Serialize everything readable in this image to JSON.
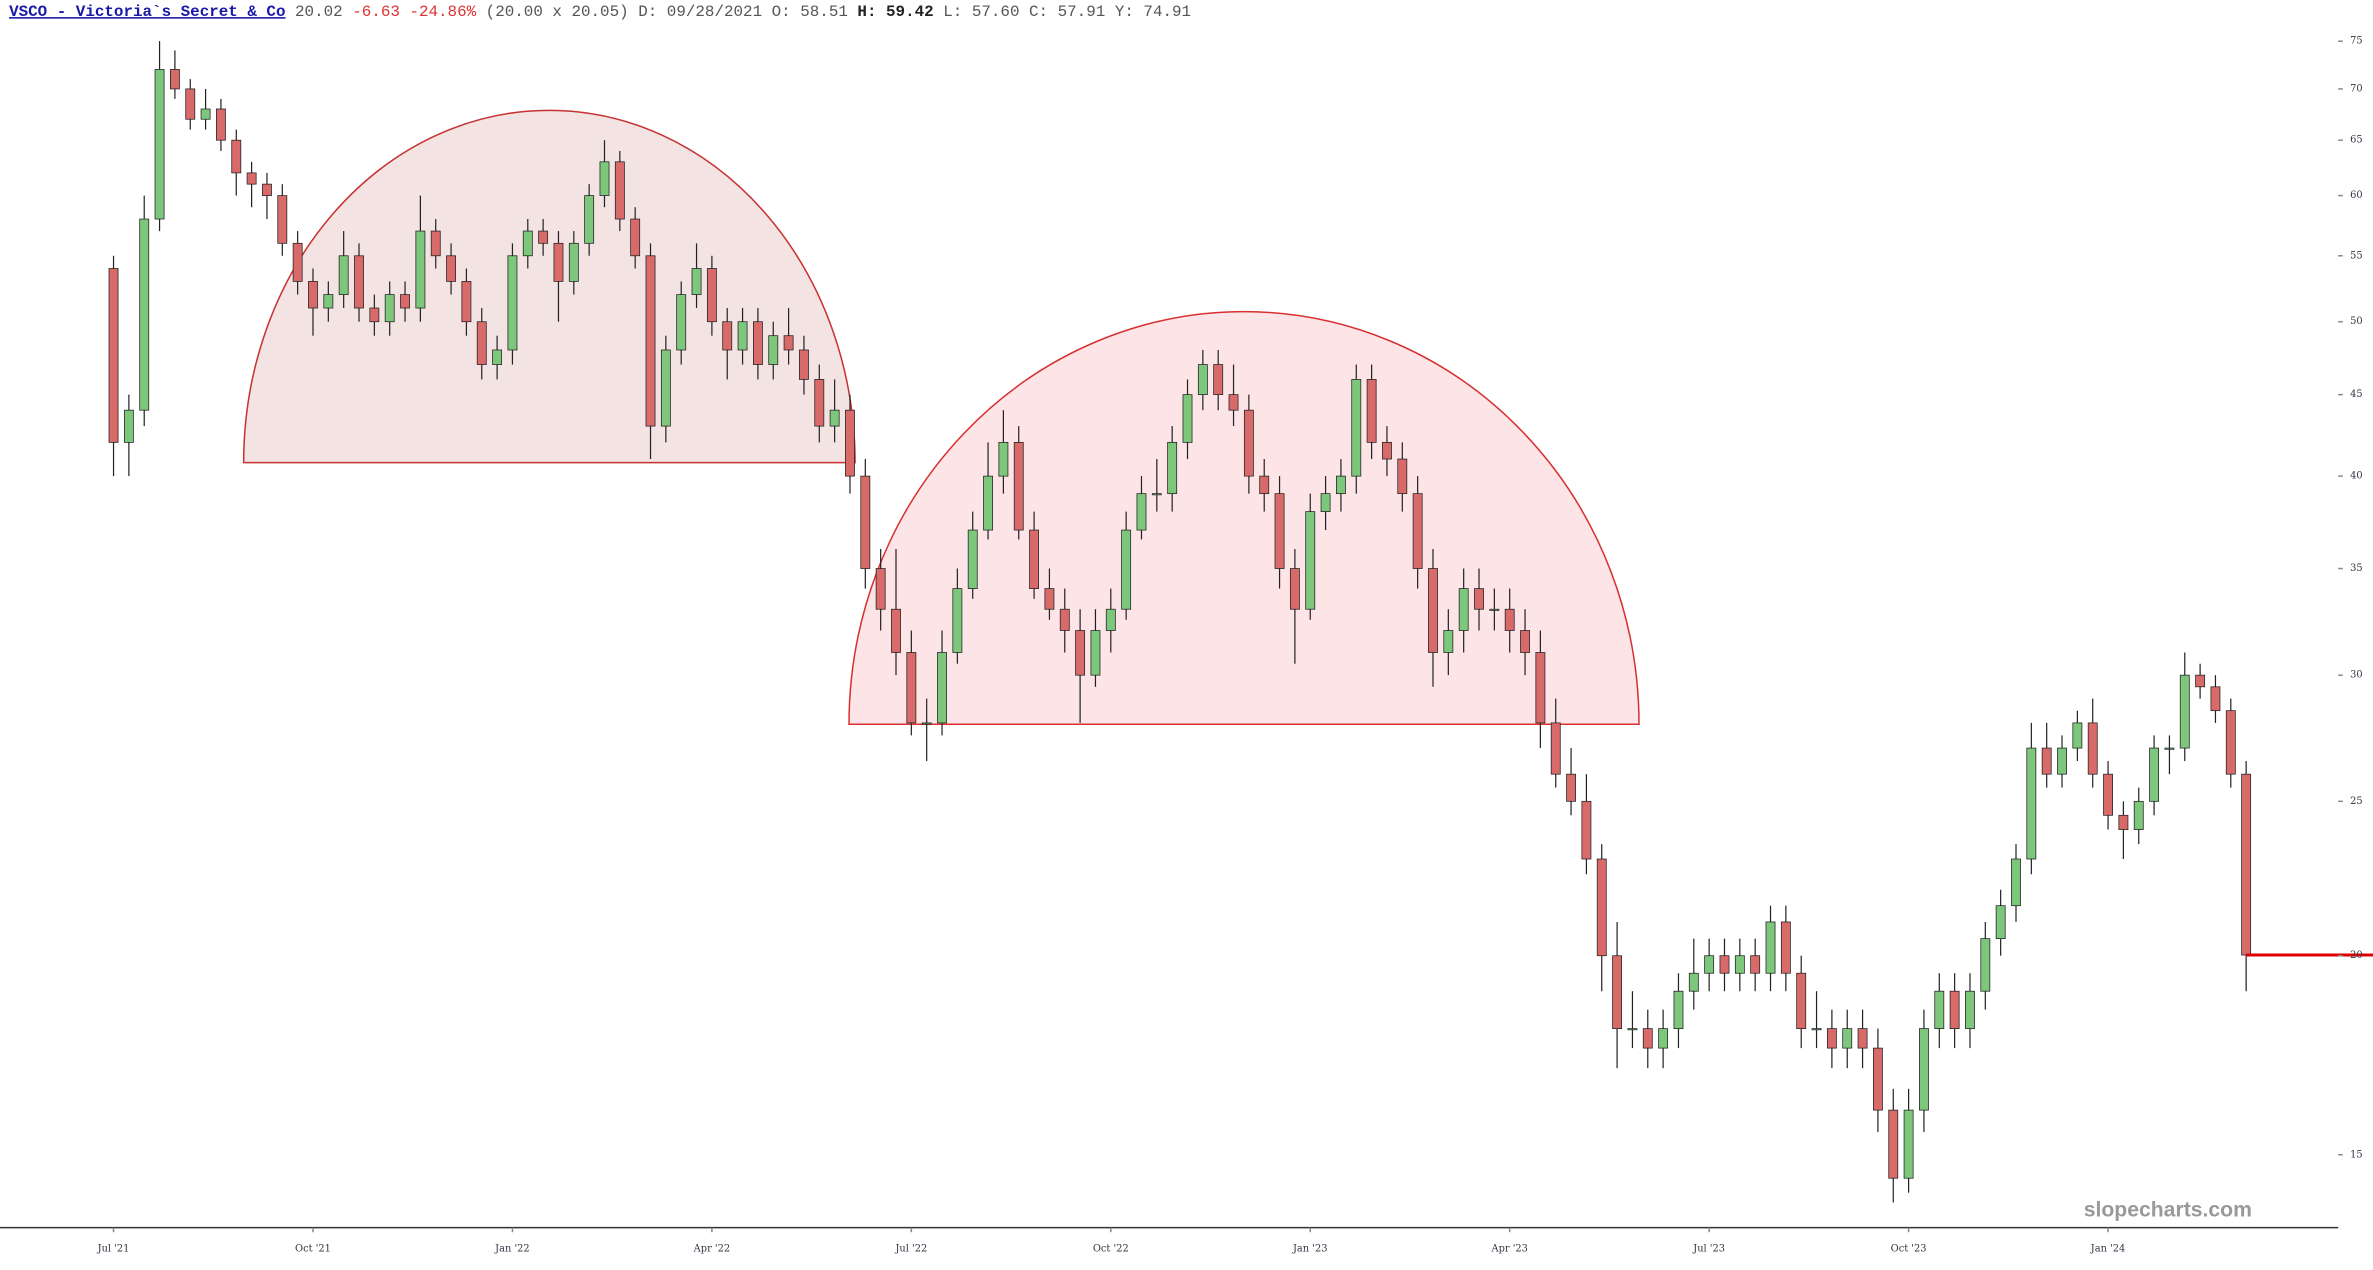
{
  "header": {
    "symbol": "VSCO - Victoria`s Secret & Co",
    "last": "20.02",
    "change": "-6.63",
    "change_pct": "-24.86%",
    "bid_ask": "(20.00 x 20.05)",
    "date": "D: 09/28/2021",
    "open": "O: 58.51",
    "high": "H: 59.42",
    "low": "L: 57.60",
    "close": "C: 57.91",
    "year": "Y: 74.91"
  },
  "chart_data": {
    "type": "candlestick",
    "log_scale": true,
    "watermark": "slopecharts.com",
    "up_color": "#7cc77c",
    "down_color": "#d96a6a",
    "last_line_color": "#dd0000",
    "xlim": [
      -7.4,
      145
    ],
    "ylim": [
      13.5,
      79.6
    ],
    "yticks": [
      15,
      20,
      25,
      30,
      35,
      40,
      45,
      50,
      55,
      60,
      65,
      70,
      75
    ],
    "xticks": [
      {
        "value": 0,
        "label": "Jul '21"
      },
      {
        "value": 13,
        "label": "Oct '21"
      },
      {
        "value": 26,
        "label": "Jan '22"
      },
      {
        "value": 39,
        "label": "Apr '22"
      },
      {
        "value": 52,
        "label": "Jul '22"
      },
      {
        "value": 65,
        "label": "Oct '22"
      },
      {
        "value": 78,
        "label": "Jan '23"
      },
      {
        "value": 91,
        "label": "Apr '23"
      },
      {
        "value": 104,
        "label": "Jul '23"
      },
      {
        "value": 117,
        "label": "Oct '23"
      },
      {
        "value": 130,
        "label": "Jan '24"
      }
    ],
    "x": [
      0,
      1,
      2,
      3,
      4,
      5,
      6,
      7,
      8,
      9,
      10,
      11,
      12,
      13,
      14,
      15,
      16,
      17,
      18,
      19,
      20,
      21,
      22,
      23,
      24,
      25,
      26,
      27,
      28,
      29,
      30,
      31,
      32,
      33,
      34,
      35,
      36,
      37,
      38,
      39,
      40,
      41,
      42,
      43,
      44,
      45,
      46,
      47,
      48,
      49,
      50,
      51,
      52,
      53,
      54,
      55,
      56,
      57,
      58,
      59,
      60,
      61,
      62,
      63,
      64,
      65,
      66,
      67,
      68,
      69,
      70,
      71,
      72,
      73,
      74,
      75,
      76,
      77,
      78,
      79,
      80,
      81,
      82,
      83,
      84,
      85,
      86,
      87,
      88,
      89,
      90,
      91,
      92,
      93,
      94,
      95,
      96,
      97,
      98,
      99,
      100,
      101,
      102,
      103,
      104,
      105,
      106,
      107,
      108,
      109,
      110,
      111,
      112,
      113,
      114,
      115,
      116,
      117,
      118,
      119,
      120,
      121,
      122,
      123,
      124,
      125,
      126,
      127,
      128,
      129,
      130,
      131,
      132,
      133,
      134,
      135,
      136,
      137,
      138,
      139
    ],
    "open": [
      54,
      42,
      44,
      58,
      72,
      70,
      67,
      68,
      65,
      62,
      61,
      60,
      56,
      53,
      51,
      52,
      55,
      51,
      50,
      52,
      51,
      57,
      55,
      53,
      50,
      47,
      48,
      55,
      57,
      56,
      53,
      56,
      60,
      63,
      58,
      55,
      43,
      48,
      52,
      54,
      50,
      48,
      50,
      47,
      49,
      48,
      46,
      43,
      44,
      40,
      35,
      33,
      31,
      28,
      28,
      31,
      34,
      37,
      40,
      42,
      37,
      34,
      33,
      32,
      30,
      32,
      33,
      37,
      39,
      39,
      42,
      45,
      47,
      45,
      44,
      40,
      39,
      35,
      33,
      38,
      39,
      40,
      46,
      42,
      41,
      39,
      35,
      31,
      32,
      34,
      33,
      33,
      32,
      31,
      28,
      26,
      25,
      23,
      20,
      18,
      18,
      17.5,
      18,
      19,
      19.5,
      20,
      19.5,
      20,
      19.5,
      21,
      19.5,
      18,
      18,
      17.5,
      18,
      17.5,
      16,
      14.5,
      16,
      18,
      19,
      18,
      19,
      20.5,
      21.5,
      23,
      27,
      26,
      27,
      28,
      26,
      24.5,
      24,
      25,
      27,
      27,
      30,
      29.5,
      28.5,
      26
    ],
    "high": [
      55,
      45,
      60,
      75,
      74,
      71,
      70,
      69,
      66,
      63,
      62,
      61,
      57,
      54,
      53,
      57,
      56,
      52,
      53,
      53,
      60,
      58,
      56,
      54,
      51,
      49,
      56,
      58,
      58,
      57,
      57,
      61,
      65,
      64,
      59,
      56,
      49,
      53,
      56,
      55,
      51,
      51,
      51,
      50,
      51,
      49,
      47,
      46,
      45,
      41,
      36,
      36,
      32,
      29,
      32,
      35,
      38,
      42,
      44,
      43,
      38,
      35,
      34,
      33,
      33,
      34,
      38,
      40,
      41,
      43,
      46,
      48,
      48,
      47,
      45,
      41,
      40,
      36,
      39,
      40,
      41,
      47,
      47,
      43,
      42,
      40,
      36,
      33,
      35,
      35,
      34,
      34,
      33,
      32,
      29,
      27,
      26,
      23.5,
      21,
      19,
      18.5,
      18.5,
      19.5,
      20.5,
      20.5,
      20.5,
      20.5,
      20.5,
      21.5,
      21.5,
      20,
      19,
      18.5,
      18.5,
      18.5,
      18,
      16.5,
      16.5,
      18.5,
      19.5,
      19.5,
      19.5,
      21,
      22,
      23.5,
      28,
      28,
      27.5,
      28.5,
      29,
      26.5,
      25,
      25.5,
      27.5,
      27.5,
      31,
      30.5,
      30,
      29,
      26.5
    ],
    "low": [
      40,
      40,
      43,
      57,
      69,
      66,
      66,
      64,
      60,
      59,
      58,
      55,
      52,
      49,
      50,
      51,
      50,
      49,
      49,
      50,
      50,
      54,
      52,
      49,
      46,
      46,
      47,
      54,
      55,
      50,
      52,
      55,
      59,
      57,
      54,
      41,
      42,
      47,
      51,
      49,
      46,
      47,
      46,
      46,
      47,
      45,
      42,
      42,
      39,
      34,
      32,
      30,
      27.5,
      26.5,
      27.5,
      30.5,
      33.5,
      36.5,
      39,
      36.5,
      33.5,
      32.5,
      31,
      28,
      29.5,
      31,
      32.5,
      36.5,
      38,
      38,
      41,
      44,
      44,
      43,
      39,
      38,
      34,
      30.5,
      32.5,
      37,
      38,
      39,
      41,
      40,
      38,
      34,
      29.5,
      30,
      31,
      32,
      32,
      31,
      30,
      27,
      25.5,
      24.5,
      22.5,
      19,
      17,
      17.5,
      17,
      17,
      17.5,
      18.5,
      19,
      19,
      19,
      19,
      19,
      19,
      17.5,
      17.5,
      17,
      17,
      17,
      15.5,
      14,
      14.2,
      15.5,
      17.5,
      17.5,
      17.5,
      18.5,
      20,
      21,
      22.5,
      25.5,
      25.5,
      26.5,
      25.5,
      24,
      23,
      23.5,
      24.5,
      26,
      26.5,
      29,
      28,
      25.5,
      19
    ],
    "close": [
      42,
      44,
      58,
      72,
      70,
      67,
      68,
      65,
      62,
      61,
      60,
      56,
      53,
      51,
      52,
      55,
      51,
      50,
      52,
      51,
      57,
      55,
      53,
      50,
      47,
      48,
      55,
      57,
      56,
      53,
      56,
      60,
      63,
      58,
      55,
      43,
      48,
      52,
      54,
      50,
      48,
      50,
      47,
      49,
      48,
      46,
      43,
      44,
      40,
      35,
      33,
      31,
      28,
      28,
      31,
      34,
      37,
      40,
      42,
      37,
      34,
      33,
      32,
      30,
      32,
      33,
      37,
      39,
      39,
      42,
      45,
      47,
      45,
      44,
      40,
      39,
      35,
      33,
      38,
      39,
      40,
      46,
      42,
      41,
      39,
      35,
      31,
      32,
      34,
      33,
      33,
      32,
      31,
      28,
      26,
      25,
      23,
      20,
      18,
      18,
      17.5,
      18,
      19,
      19.5,
      20,
      19.5,
      20,
      19.5,
      21,
      19.5,
      18,
      18,
      17.5,
      18,
      17.5,
      16,
      14.5,
      16,
      18,
      19,
      18,
      19,
      20.5,
      21.5,
      23,
      27,
      26,
      27,
      28,
      26,
      24.5,
      24,
      25,
      27,
      27,
      30,
      29.5,
      28.5,
      26,
      20.02
    ]
  }
}
